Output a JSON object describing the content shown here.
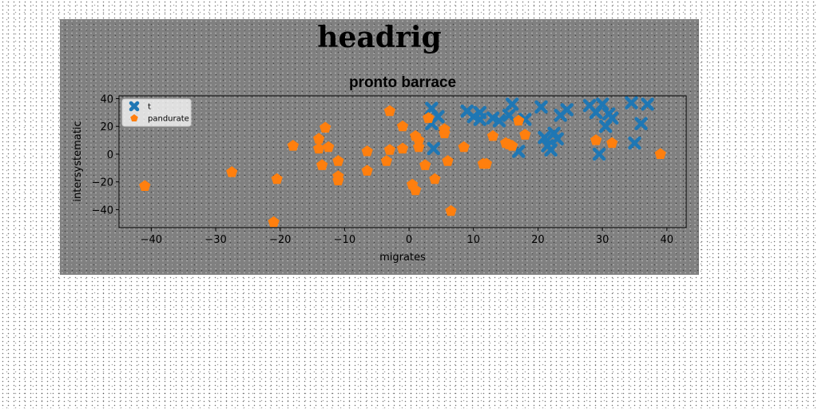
{
  "figure": {
    "title": "headrig"
  },
  "chart_data": {
    "type": "scatter",
    "title": "pronto barrace",
    "xlabel": "migrates",
    "ylabel": "intersystematic",
    "xlim": [
      -45,
      43
    ],
    "ylim": [
      -53,
      42
    ],
    "xticks": [
      -40,
      -30,
      -20,
      -10,
      0,
      10,
      20,
      30,
      40
    ],
    "yticks": [
      -40,
      -20,
      0,
      20,
      40
    ],
    "grid": false,
    "legend_position": "top-left",
    "series": [
      {
        "name": "t",
        "marker": "x",
        "color": "#1f77b4",
        "points": [
          [
            3.5,
            33
          ],
          [
            4.5,
            27
          ],
          [
            3.5,
            22
          ],
          [
            3.8,
            4
          ],
          [
            9,
            31
          ],
          [
            10,
            27
          ],
          [
            11,
            30
          ],
          [
            11,
            25
          ],
          [
            13,
            26
          ],
          [
            14,
            24
          ],
          [
            15.5,
            28
          ],
          [
            16,
            36
          ],
          [
            17,
            2
          ],
          [
            18,
            25
          ],
          [
            20.5,
            34
          ],
          [
            21,
            12
          ],
          [
            21.5,
            6
          ],
          [
            22,
            3
          ],
          [
            22.5,
            15
          ],
          [
            23,
            11
          ],
          [
            23.5,
            28
          ],
          [
            24.5,
            32
          ],
          [
            28,
            35
          ],
          [
            29,
            30
          ],
          [
            29.5,
            0
          ],
          [
            30,
            36
          ],
          [
            30.5,
            20
          ],
          [
            31,
            29
          ],
          [
            31.5,
            26
          ],
          [
            34.5,
            37
          ],
          [
            35,
            8
          ],
          [
            36,
            22
          ],
          [
            37,
            36
          ]
        ]
      },
      {
        "name": "pandurate",
        "marker": "pentagon",
        "color": "#ff7f0e",
        "points": [
          [
            -41,
            -23
          ],
          [
            -27.5,
            -13
          ],
          [
            -20.5,
            -18
          ],
          [
            -21,
            -49
          ],
          [
            -18,
            6
          ],
          [
            -14,
            11
          ],
          [
            -14,
            4
          ],
          [
            -13.5,
            -8
          ],
          [
            -13,
            19
          ],
          [
            -12.5,
            5
          ],
          [
            -11,
            -5
          ],
          [
            -11,
            -16
          ],
          [
            -11,
            -19
          ],
          [
            -6.5,
            -12
          ],
          [
            -6.5,
            2
          ],
          [
            -3.5,
            -5
          ],
          [
            -3,
            3
          ],
          [
            -3,
            31
          ],
          [
            -1,
            20
          ],
          [
            -1,
            4
          ],
          [
            0.5,
            -22
          ],
          [
            1,
            -26
          ],
          [
            1,
            13
          ],
          [
            1.5,
            10
          ],
          [
            1.5,
            5
          ],
          [
            2.5,
            -8
          ],
          [
            3,
            26
          ],
          [
            4,
            -18
          ],
          [
            5.5,
            15
          ],
          [
            5.5,
            18
          ],
          [
            6,
            -5
          ],
          [
            6.5,
            -41
          ],
          [
            8.5,
            5
          ],
          [
            11.5,
            -7
          ],
          [
            12,
            -7
          ],
          [
            13,
            13
          ],
          [
            15,
            8
          ],
          [
            15.5,
            7
          ],
          [
            16,
            6
          ],
          [
            17,
            24
          ],
          [
            18,
            14
          ],
          [
            29,
            10
          ],
          [
            31.5,
            8
          ],
          [
            39,
            0
          ]
        ]
      }
    ]
  }
}
